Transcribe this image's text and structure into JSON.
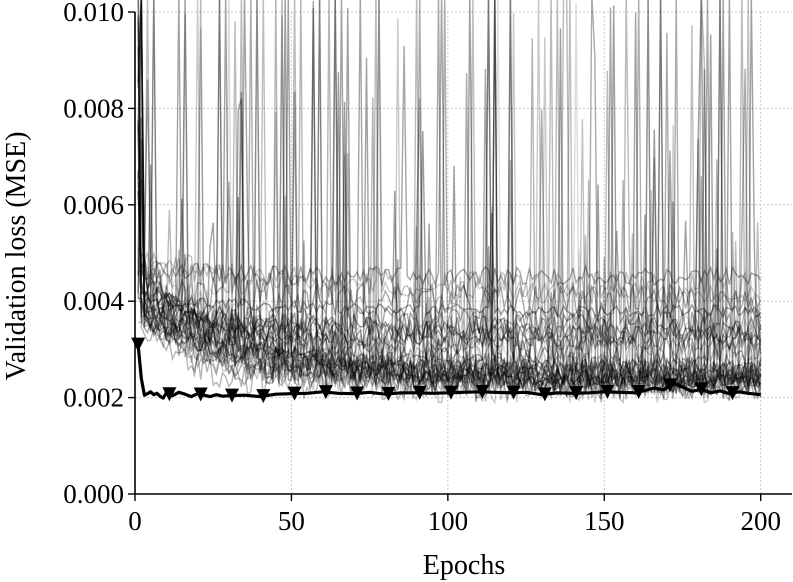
{
  "chart_data": {
    "type": "line",
    "xlabel": "Epochs",
    "ylabel": "Validation loss (MSE)",
    "xlim": [
      0,
      210
    ],
    "ylim": [
      0,
      0.01
    ],
    "xticks": [
      0,
      50,
      100,
      150,
      200
    ],
    "xtick_labels": [
      "0",
      "50",
      "100",
      "150",
      "200"
    ],
    "yticks": [
      0,
      0.002,
      0.004,
      0.006,
      0.008,
      0.01
    ],
    "ytick_labels": [
      "0.000",
      "0.002",
      "0.004",
      "0.006",
      "0.008",
      "0.010"
    ],
    "grid": true,
    "colors": {
      "best": "#000000",
      "runs": "#000000",
      "grid": "#c8c8c8"
    },
    "background_runs": {
      "count": 40,
      "epochs": 200,
      "description_color": "grey",
      "note_final_loss_range": [
        0.0021,
        0.0095
      ]
    },
    "best_run": {
      "marker": "triangle-down",
      "marker_every": 10,
      "x": [
        1,
        2,
        3,
        4,
        5,
        6,
        7,
        8,
        9,
        10,
        12,
        14,
        16,
        18,
        20,
        22,
        24,
        26,
        28,
        30,
        35,
        40,
        45,
        50,
        55,
        60,
        65,
        70,
        75,
        80,
        85,
        90,
        95,
        100,
        105,
        110,
        115,
        120,
        125,
        130,
        135,
        140,
        145,
        150,
        155,
        160,
        163,
        166,
        169,
        172,
        175,
        178,
        181,
        184,
        187,
        190,
        193,
        196,
        200
      ],
      "y": [
        0.0031,
        0.0024,
        0.00205,
        0.00208,
        0.00212,
        0.00206,
        0.00209,
        0.00203,
        0.00199,
        0.0021,
        0.00204,
        0.00211,
        0.00207,
        0.00202,
        0.00208,
        0.00205,
        0.00202,
        0.00206,
        0.00203,
        0.00204,
        0.00205,
        0.00202,
        0.00207,
        0.00208,
        0.00209,
        0.00212,
        0.00209,
        0.00208,
        0.00211,
        0.00207,
        0.0021,
        0.0021,
        0.00209,
        0.0021,
        0.00211,
        0.00212,
        0.00211,
        0.0021,
        0.00211,
        0.00206,
        0.0021,
        0.00209,
        0.0021,
        0.00212,
        0.00211,
        0.0021,
        0.00215,
        0.0022,
        0.00216,
        0.0023,
        0.00222,
        0.00213,
        0.00217,
        0.0021,
        0.00214,
        0.00208,
        0.00212,
        0.00209,
        0.00206
      ]
    }
  }
}
